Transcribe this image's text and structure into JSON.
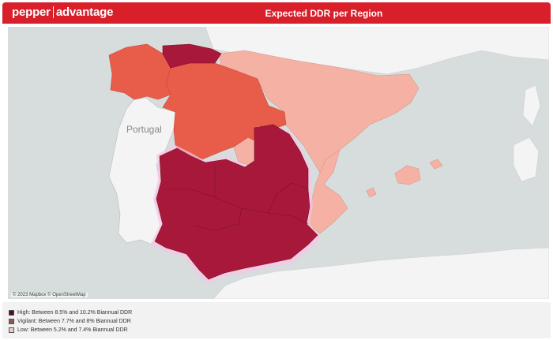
{
  "header": {
    "brand_left": "pepper",
    "brand_right": "advantage",
    "title": "Expected DDR per Region"
  },
  "map": {
    "country_label": "Portugal",
    "attribution": "© 2023 Mapbox © OpenStreetMap",
    "colors": {
      "sea": "#d7dcdc",
      "land": "#f4f4f4",
      "high": "#a8183a",
      "vigilant": "#e85c4a",
      "low": "#f5b1a3",
      "glow": "#f6c6e6"
    }
  },
  "legend": {
    "items": [
      {
        "label": "High: Between 8.5% and 10.2%  Biannual DDR",
        "color": "#4a1020"
      },
      {
        "label": "Vigilant: Between 7.7% and 8%  Biannual DDR",
        "color": "#8a5a52"
      },
      {
        "label": "Low: Between 5.2% and 7.4%  Biannual DDR",
        "color": "#e8cfc8"
      }
    ]
  }
}
